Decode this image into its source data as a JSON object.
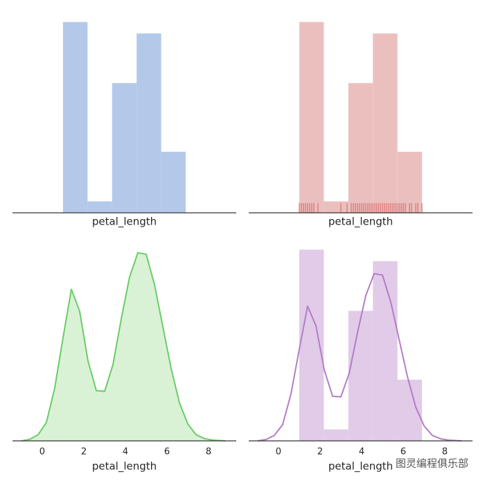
{
  "chart_data": [
    {
      "type": "histogram",
      "bins": [
        1.0,
        2.18,
        3.36,
        4.54,
        5.72,
        6.9
      ],
      "values": [
        50,
        3,
        34,
        47,
        16
      ],
      "color": "#b4c8ea",
      "xlim": [
        -1.43,
        9.33
      ],
      "ylim": [
        0,
        52.5
      ],
      "xlabel": "petal_length"
    },
    {
      "type": "histogram",
      "bins": [
        1.0,
        2.18,
        3.36,
        4.54,
        5.72,
        6.9
      ],
      "values": [
        50,
        3,
        34,
        47,
        16
      ],
      "color": "#ecbfbf",
      "xlim": [
        -1.43,
        9.33
      ],
      "ylim": [
        0,
        52.5
      ],
      "xlabel": "petal_length",
      "rug": [
        1.0,
        1.1,
        1.2,
        1.3,
        1.4,
        1.5,
        1.6,
        1.7,
        1.9,
        3.0,
        3.3,
        3.5,
        3.6,
        3.7,
        3.8,
        3.9,
        4.0,
        4.1,
        4.2,
        4.3,
        4.4,
        4.5,
        4.6,
        4.7,
        4.8,
        4.9,
        5.0,
        5.1,
        5.2,
        5.3,
        5.4,
        5.5,
        5.6,
        5.7,
        5.8,
        5.9,
        6.0,
        6.1,
        6.3,
        6.4,
        6.6,
        6.7,
        6.9
      ],
      "rug_color": "#d65f5f"
    },
    {
      "type": "kde",
      "x": [
        -1.0,
        -0.6,
        -0.2,
        0.2,
        0.6,
        1.0,
        1.4,
        1.8,
        2.2,
        2.6,
        3.0,
        3.4,
        3.8,
        4.2,
        4.6,
        5.0,
        5.4,
        5.8,
        6.2,
        6.6,
        7.0,
        7.4,
        7.8,
        8.2,
        8.8
      ],
      "values": [
        0.0,
        0.002,
        0.008,
        0.024,
        0.069,
        0.135,
        0.199,
        0.17,
        0.105,
        0.066,
        0.065,
        0.1,
        0.16,
        0.215,
        0.247,
        0.245,
        0.205,
        0.15,
        0.095,
        0.05,
        0.022,
        0.008,
        0.003,
        0.001,
        0.0
      ],
      "color": "#6acc65",
      "fill": "#d9f2d6",
      "xlim": [
        -1.43,
        9.33
      ],
      "ylim": [
        0,
        0.263
      ],
      "xticks": [
        0,
        2,
        4,
        6,
        8
      ],
      "xlabel": "petal_length"
    },
    {
      "type": "histogram",
      "bins": [
        1.0,
        2.18,
        3.36,
        4.54,
        5.72,
        6.9
      ],
      "values": [
        0.2825,
        0.0169,
        0.1921,
        0.2655,
        0.0904
      ],
      "color": "#e1cbe8",
      "xlim": [
        -1.43,
        9.33
      ],
      "ylim": [
        0,
        0.296
      ],
      "xticks": [
        0,
        2,
        4,
        6,
        8
      ],
      "xlabel": "petal_length",
      "kde": {
        "x": [
          -1.0,
          -0.6,
          -0.2,
          0.2,
          0.6,
          1.0,
          1.4,
          1.8,
          2.2,
          2.6,
          3.0,
          3.4,
          3.8,
          4.2,
          4.6,
          5.0,
          5.4,
          5.8,
          6.2,
          6.6,
          7.0,
          7.4,
          7.8,
          8.2,
          8.8
        ],
        "values": [
          0.0,
          0.002,
          0.008,
          0.024,
          0.069,
          0.135,
          0.199,
          0.17,
          0.105,
          0.066,
          0.065,
          0.1,
          0.16,
          0.215,
          0.247,
          0.245,
          0.205,
          0.15,
          0.095,
          0.05,
          0.022,
          0.008,
          0.003,
          0.001,
          0.0
        ],
        "color": "#b47cc7"
      }
    }
  ],
  "watermark": "图灵编程俱乐部"
}
